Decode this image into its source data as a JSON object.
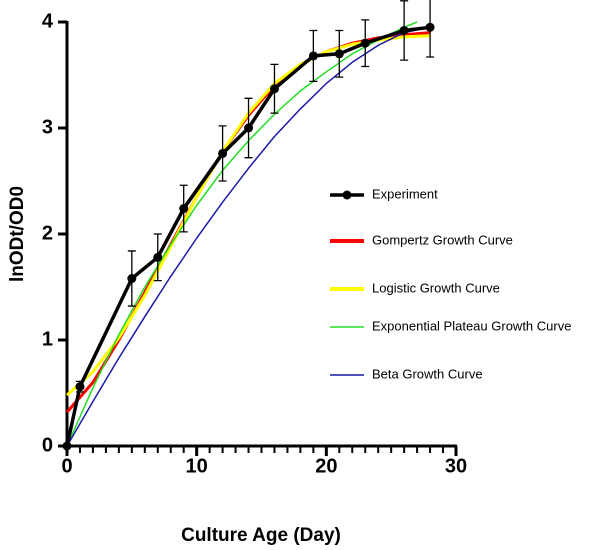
{
  "chart_data": {
    "type": "line",
    "xlabel": "Culture Age (Day)",
    "ylabel": "lnODt/OD0",
    "xlim": [
      0,
      30
    ],
    "xticks": [
      0,
      10,
      20,
      30
    ],
    "xminorticks": [
      1,
      2,
      3,
      4,
      5,
      6,
      7,
      8,
      9,
      11,
      12,
      13,
      14,
      15,
      16,
      17,
      18,
      19,
      21,
      22,
      23,
      24,
      25,
      26,
      27,
      28,
      29
    ],
    "ylim": [
      0,
      4
    ],
    "yticks": [
      0,
      1,
      2,
      3,
      4
    ],
    "legend": "right",
    "series": [
      {
        "name": "Experiment",
        "color": "#000000",
        "x": [
          0,
          1,
          5,
          7,
          9,
          12,
          14,
          16,
          19,
          21,
          23,
          26,
          28
        ],
        "values": [
          0,
          0.56,
          1.58,
          1.78,
          2.24,
          2.76,
          3.0,
          3.37,
          3.68,
          3.7,
          3.8,
          3.92,
          3.95
        ],
        "errors": [
          0,
          0.05,
          0.26,
          0.22,
          0.22,
          0.26,
          0.28,
          0.23,
          0.24,
          0.22,
          0.22,
          0.28,
          0.28
        ]
      },
      {
        "name": "Gompertz Growth Curve",
        "color": "#ff0000",
        "x": [
          0,
          2,
          4,
          6,
          8,
          10,
          12,
          14,
          16,
          18,
          20,
          22,
          24,
          26,
          28
        ],
        "values": [
          0.32,
          0.6,
          1.0,
          1.45,
          1.9,
          2.35,
          2.78,
          3.12,
          3.4,
          3.6,
          3.72,
          3.8,
          3.85,
          3.88,
          3.9
        ]
      },
      {
        "name": "Logistic Growth Curve",
        "color": "#ffff00",
        "x": [
          0,
          2,
          4,
          6,
          8,
          10,
          12,
          14,
          16,
          18,
          20,
          22,
          24,
          26,
          28
        ],
        "values": [
          0.48,
          0.7,
          1.02,
          1.42,
          1.88,
          2.35,
          2.78,
          3.14,
          3.42,
          3.6,
          3.72,
          3.79,
          3.83,
          3.86,
          3.87
        ]
      },
      {
        "name": "Exponential Plateau Growth Curve",
        "color": "#22dd22",
        "x": [
          0,
          2,
          4,
          6,
          8,
          10,
          12,
          14,
          16,
          18,
          20,
          22,
          24,
          26,
          27
        ],
        "values": [
          0,
          0.55,
          1.05,
          1.5,
          1.9,
          2.27,
          2.6,
          2.88,
          3.13,
          3.35,
          3.53,
          3.7,
          3.83,
          3.95,
          4.0
        ]
      },
      {
        "name": "Beta Growth Curve",
        "color": "#1a1aaa",
        "x": [
          0,
          2,
          4,
          6,
          8,
          10,
          12,
          14,
          16,
          18,
          20,
          22,
          24,
          26,
          28
        ],
        "values": [
          0,
          0.42,
          0.83,
          1.22,
          1.6,
          1.96,
          2.3,
          2.62,
          2.92,
          3.18,
          3.42,
          3.62,
          3.78,
          3.9,
          3.95
        ]
      }
    ]
  }
}
